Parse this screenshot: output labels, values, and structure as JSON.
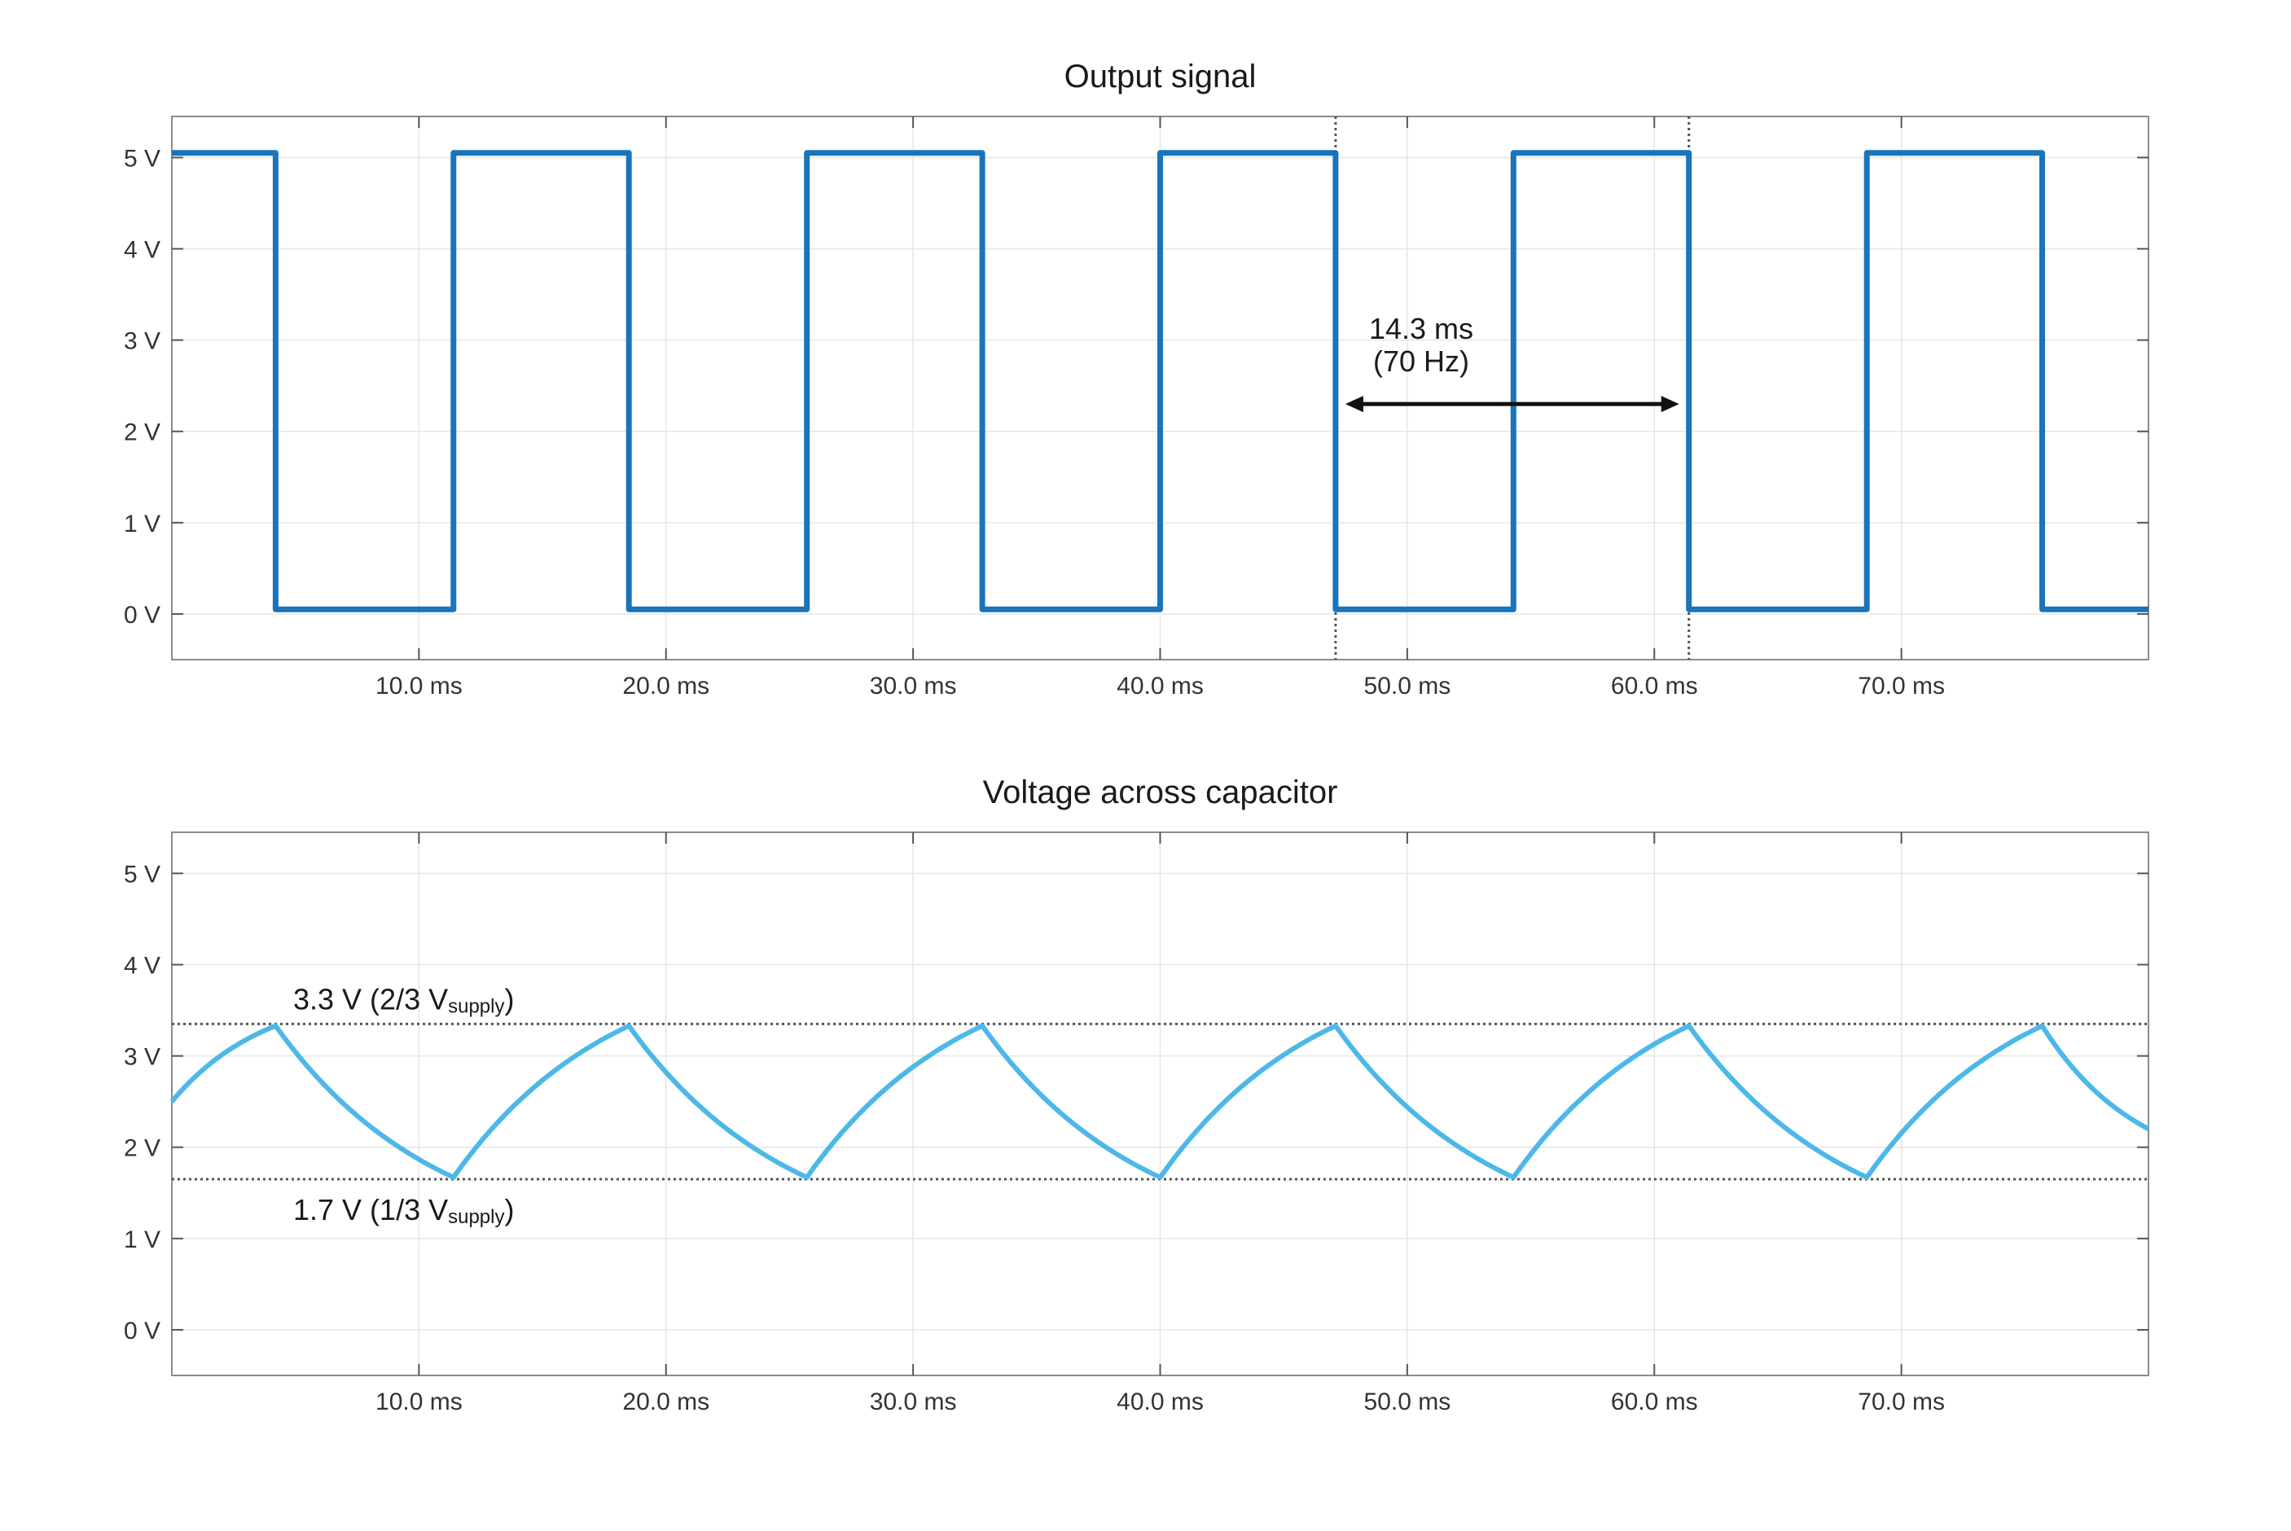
{
  "chart_data": [
    {
      "type": "line",
      "title": "Output signal",
      "xlabel": "",
      "ylabel": "",
      "xlim": [
        0,
        80
      ],
      "ylim": [
        -0.5,
        5.45
      ],
      "grid": true,
      "x_ticks": [
        10,
        20,
        30,
        40,
        50,
        60,
        70
      ],
      "x_tick_labels": [
        "10.0 ms",
        "20.0 ms",
        "30.0 ms",
        "40.0 ms",
        "50.0 ms",
        "60.0 ms",
        "70.0 ms"
      ],
      "y_ticks": [
        0,
        1,
        2,
        3,
        4,
        5
      ],
      "y_tick_labels": [
        "0 V",
        "1 V",
        "2 V",
        "3 V",
        "4 V",
        "5 V"
      ],
      "color": "#1a74bb",
      "series": [
        {
          "x": [
            0,
            4.2,
            4.2,
            11.4,
            11.4,
            18.5,
            18.5,
            25.7,
            25.7,
            32.8,
            32.8,
            40.0,
            40.0,
            47.1,
            47.1,
            54.3,
            54.3,
            61.4,
            61.4,
            68.6,
            68.6,
            75.7,
            75.7,
            80
          ],
          "y": [
            5.05,
            5.05,
            0.05,
            0.05,
            5.05,
            5.05,
            0.05,
            0.05,
            5.05,
            5.05,
            0.05,
            0.05,
            5.05,
            5.05,
            0.05,
            0.05,
            5.05,
            5.05,
            0.05,
            0.05,
            5.05,
            5.05,
            0.05,
            0.05
          ]
        }
      ],
      "markers": [
        47.1,
        61.4
      ],
      "annotation": {
        "line1": "14.3 ms",
        "line2": "(70 Hz)",
        "x_from": 47.1,
        "x_to": 61.4,
        "y": 2.3
      }
    },
    {
      "type": "line",
      "title": "Voltage across capacitor",
      "xlabel": "",
      "ylabel": "",
      "xlim": [
        0,
        80
      ],
      "ylim": [
        -0.5,
        5.45
      ],
      "grid": true,
      "x_ticks": [
        10,
        20,
        30,
        40,
        50,
        60,
        70
      ],
      "x_tick_labels": [
        "10.0 ms",
        "20.0 ms",
        "30.0 ms",
        "40.0 ms",
        "50.0 ms",
        "60.0 ms",
        "70.0 ms"
      ],
      "y_ticks": [
        0,
        1,
        2,
        3,
        4,
        5
      ],
      "y_tick_labels": [
        "0 V",
        "1 V",
        "2 V",
        "3 V",
        "4 V",
        "5 V"
      ],
      "color": "#4db8e8",
      "series": [
        {
          "x": [
            0,
            4.2,
            11.4,
            18.5,
            25.7,
            32.8,
            40.0,
            47.1,
            54.3,
            61.4,
            68.6,
            75.7,
            80
          ],
          "y": [
            2.5,
            3.33,
            1.67,
            3.33,
            1.67,
            3.33,
            1.67,
            3.33,
            1.67,
            3.33,
            1.67,
            3.33,
            2.2
          ]
        }
      ],
      "reference_lines": [
        {
          "y": 3.35,
          "label": "3.3 V (2/3 V",
          "sub": "supply",
          "close": ")"
        },
        {
          "y": 1.65,
          "label": "1.7 V (1/3 V",
          "sub": "supply",
          "close": ")"
        }
      ]
    }
  ]
}
